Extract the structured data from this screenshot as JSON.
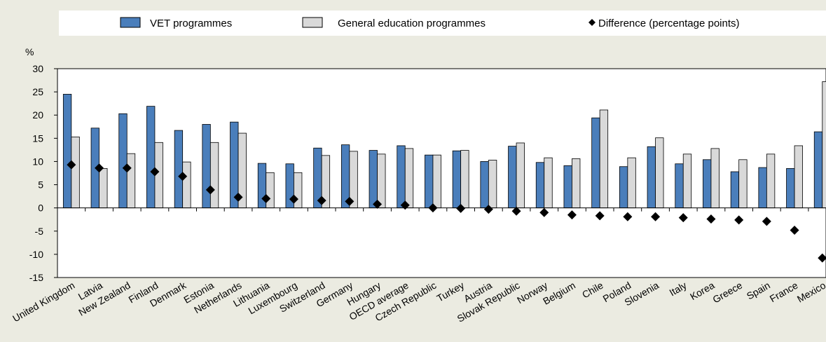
{
  "chart_data": {
    "type": "bar",
    "ylabel": "%",
    "ylim": [
      -15,
      30
    ],
    "yticks": [
      30,
      25,
      20,
      15,
      10,
      5,
      0,
      -5,
      -10,
      -15
    ],
    "legend_position": "top",
    "categories": [
      "United Kingdom",
      "Latvia",
      "New Zealand",
      "Finland",
      "Denmark",
      "Estonia",
      "Netherlands",
      "Lithuania",
      "Luxembourg",
      "Switzerland",
      "Germany",
      "Hungary",
      "OECD average",
      "Czech Republic",
      "Turkey",
      "Austria",
      "Slovak Republic",
      "Norway",
      "Belgium",
      "Chile",
      "Poland",
      "Slovenia",
      "Italy",
      "Korea",
      "Greece",
      "Spain",
      "France",
      "Mexico"
    ],
    "series": [
      {
        "name": "VET programmes",
        "kind": "bar",
        "color": "#4a7ebb",
        "values": [
          24.5,
          17.2,
          20.3,
          21.9,
          16.7,
          18.0,
          18.5,
          9.6,
          9.5,
          12.9,
          13.6,
          12.4,
          13.4,
          11.4,
          12.3,
          10.0,
          13.3,
          9.8,
          9.1,
          19.4,
          8.9,
          13.2,
          9.5,
          10.4,
          7.8,
          8.7,
          8.5,
          16.4
        ]
      },
      {
        "name": "General education programmes",
        "kind": "bar",
        "color": "#d9d9d9",
        "values": [
          15.3,
          8.5,
          11.7,
          14.1,
          9.9,
          14.1,
          16.1,
          7.6,
          7.6,
          11.3,
          12.2,
          11.6,
          12.8,
          11.4,
          12.4,
          10.3,
          14.0,
          10.8,
          10.6,
          21.1,
          10.8,
          15.1,
          11.6,
          12.8,
          10.4,
          11.6,
          13.4,
          27.2
        ]
      },
      {
        "name": "Difference (percentage points)",
        "kind": "marker",
        "color": "#000000",
        "values": [
          9.3,
          8.6,
          8.6,
          7.8,
          6.8,
          3.9,
          2.3,
          2.0,
          1.9,
          1.6,
          1.4,
          0.8,
          0.6,
          0.0,
          -0.1,
          -0.3,
          -0.7,
          -1.0,
          -1.5,
          -1.7,
          -1.9,
          -1.9,
          -2.1,
          -2.4,
          -2.6,
          -2.9,
          -4.8,
          -10.8
        ]
      }
    ]
  }
}
